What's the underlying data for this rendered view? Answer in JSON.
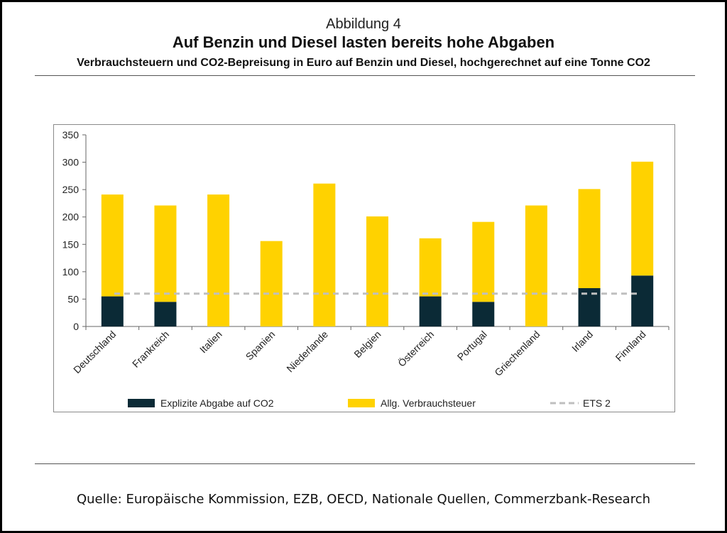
{
  "header": {
    "figure_label": "Abbildung 4",
    "title": "Auf Benzin und Diesel lasten bereits hohe Abgaben",
    "subtitle": "Verbrauchsteuern und CO2-Bepreisung in Euro auf Benzin und Diesel, hochgerechnet auf eine Tonne CO2"
  },
  "footer": {
    "source": "Quelle: Europäische Kommission, EZB, OECD, Nationale Quellen, Commerzbank-Research"
  },
  "chart_data": {
    "type": "bar",
    "stacked": true,
    "categories": [
      "Deutschland",
      "Frankreich",
      "Italien",
      "Spanien",
      "Niederlande",
      "Belgien",
      "Österreich",
      "Portugal",
      "Griechenland",
      "Irland",
      "Finnland"
    ],
    "series": [
      {
        "name": "Explizite Abgabe auf CO2",
        "color": "#0b2a36",
        "values": [
          55,
          45,
          0,
          0,
          0,
          0,
          55,
          45,
          0,
          70,
          93
        ]
      },
      {
        "name": "Allg. Verbrauchsteuer",
        "color": "#ffd200",
        "values": [
          186,
          176,
          241,
          156,
          261,
          201,
          106,
          146,
          221,
          181,
          208
        ]
      }
    ],
    "reference_line": {
      "name": "ETS 2",
      "value": 60,
      "color": "#bfbfbf",
      "style": "dashed"
    },
    "ylim": [
      0,
      350
    ],
    "yticks": [
      0,
      50,
      100,
      150,
      200,
      250,
      300,
      350
    ],
    "legend_position": "bottom",
    "grid": false
  }
}
